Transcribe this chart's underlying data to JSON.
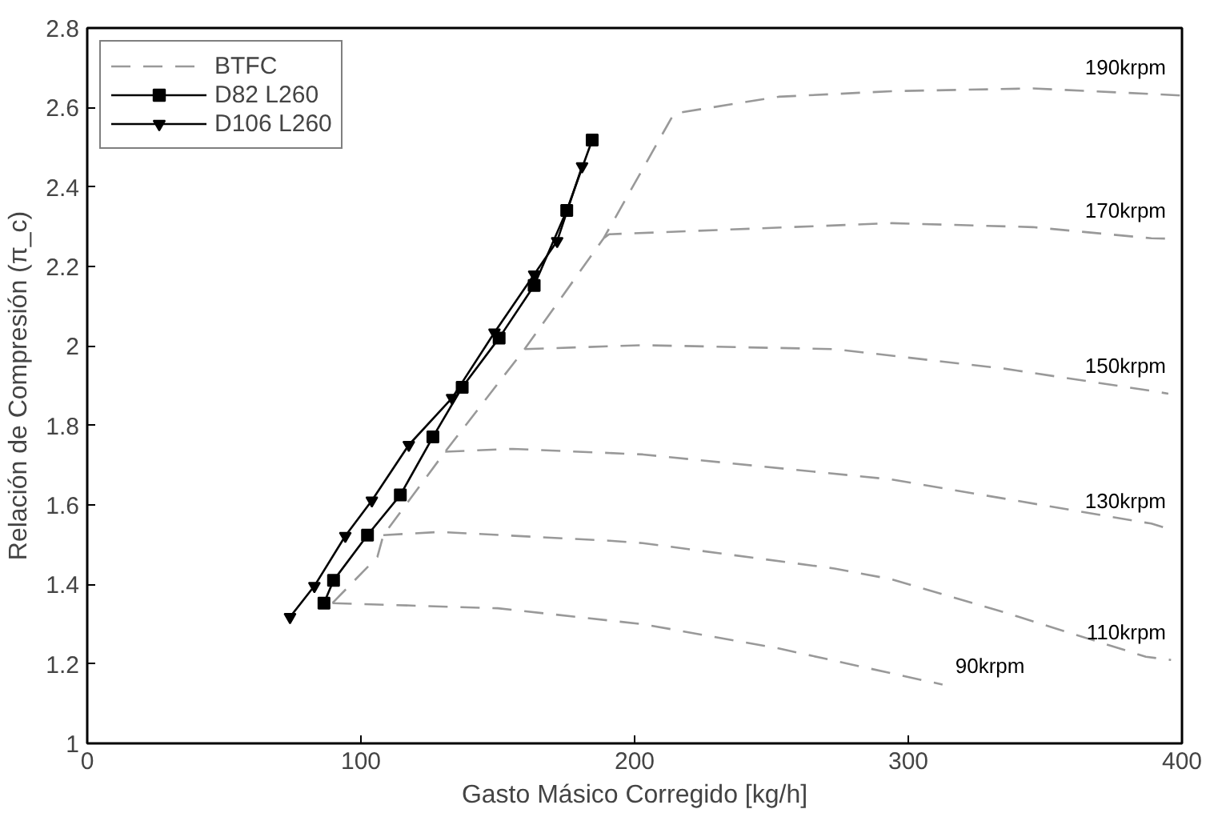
{
  "chart_data": {
    "type": "line",
    "xlabel": "Gasto Másico Corregido [kg/h]",
    "ylabel": "Relación de Compresión (π_c)",
    "xlim": [
      0,
      400
    ],
    "xticks": [
      0,
      100,
      200,
      300,
      400
    ],
    "ylim": [
      1,
      2.8
    ],
    "yticks": [
      1,
      1.2,
      1.4,
      1.6,
      1.8,
      2,
      2.2,
      2.4,
      2.6,
      2.8
    ],
    "grid": false,
    "legend": "top left",
    "series": [
      {
        "name": "BTFC",
        "color": "#999999",
        "line_style": "dashed",
        "marker": "none",
        "x": [
          89.6,
          106,
          108.2,
          130.8,
          159.8,
          188.7,
          214.4,
          252.6,
          293.9,
          345.5,
          388.8,
          400,
          null,
          89.6,
          150,
          203,
          252.6,
          312.5,
          null,
          108.2,
          128.8,
          190.7,
          203,
          273,
          293.9,
          335,
          386.8,
          396,
          null,
          130.8,
          155.5,
          203,
          293.9,
          388.8,
          395,
          null,
          159.8,
          203,
          273,
          335,
          388.8,
          395,
          null,
          188.7,
          190.7,
          293.9,
          345.5,
          388.8,
          395
        ],
        "values": [
          1.353,
          1.469,
          1.524,
          1.734,
          1.992,
          2.271,
          2.585,
          2.627,
          2.641,
          2.648,
          2.634,
          2.63,
          null,
          1.353,
          1.34,
          1.3,
          1.239,
          1.148,
          null,
          1.524,
          1.532,
          1.51,
          1.504,
          1.44,
          1.413,
          1.33,
          1.218,
          1.21,
          null,
          1.734,
          1.741,
          1.727,
          1.664,
          1.553,
          1.54,
          null,
          1.992,
          2.002,
          1.992,
          1.943,
          1.887,
          1.88,
          null,
          2.271,
          2.281,
          2.309,
          2.299,
          2.271,
          2.27
        ]
      },
      {
        "name": "D82 L260",
        "color": "#000000",
        "line_style": "solid",
        "marker": "square",
        "x": [
          86.5,
          90.0,
          102.4,
          114.4,
          126.3,
          137.0,
          150.5,
          163.3,
          175.2,
          184.5
        ],
        "values": [
          1.353,
          1.41,
          1.524,
          1.625,
          1.771,
          1.896,
          2.02,
          2.152,
          2.341,
          2.518
        ]
      },
      {
        "name": "D106 L260",
        "color": "#000000",
        "line_style": "solid",
        "marker": "triangle",
        "x": [
          74.1,
          83.0,
          94.3,
          104.0,
          117.5,
          133.3,
          148.8,
          163.3,
          171.7,
          180.8
        ],
        "values": [
          1.318,
          1.396,
          1.522,
          1.611,
          1.751,
          1.869,
          2.034,
          2.18,
          2.264,
          2.452
        ]
      }
    ],
    "annotations": [
      "190krpm",
      "170krpm",
      "150krpm",
      "130krpm",
      "110krpm",
      "90krpm"
    ]
  }
}
